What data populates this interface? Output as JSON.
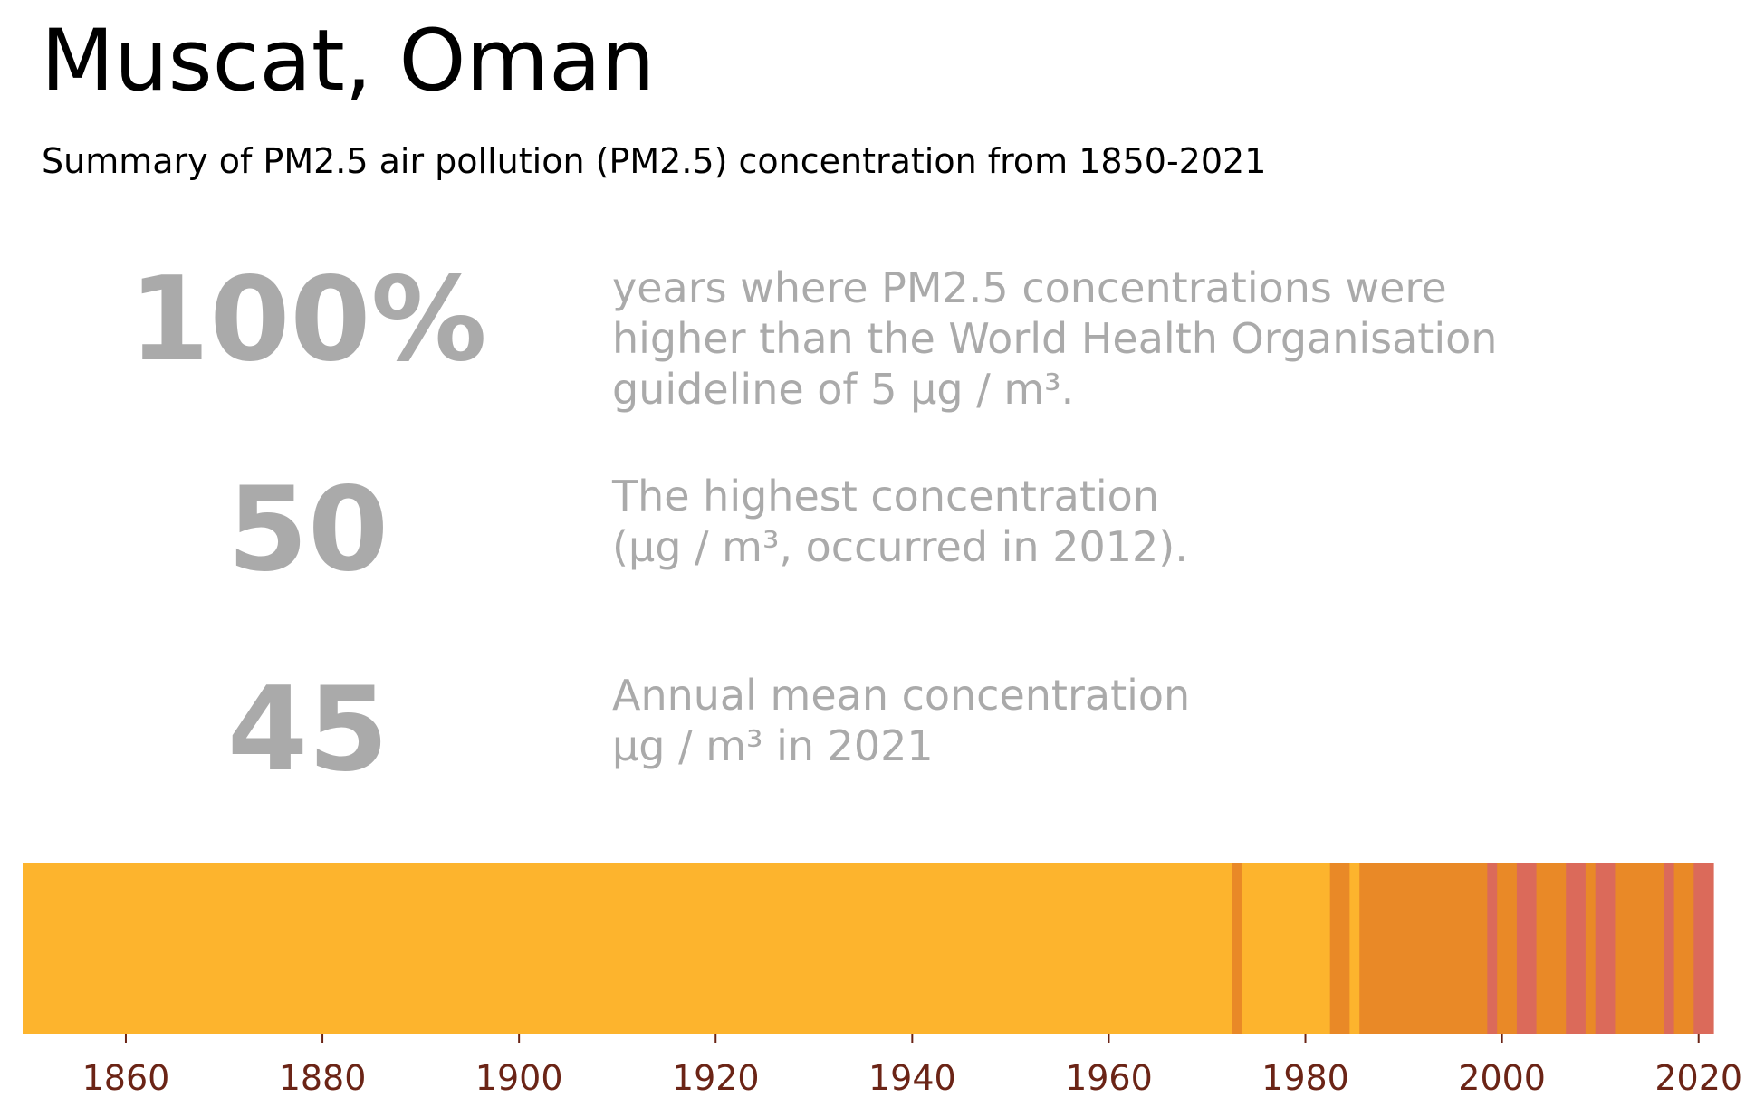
{
  "title": "Muscat, Oman",
  "subtitle": "Summary of PM2.5 air pollution (PM2.5) concentration from 1850-2021",
  "stats": [
    {
      "value": "100%",
      "lines": [
        "years where PM2.5 concentrations were",
        "higher than the World Health Organisation",
        "guideline of 5 µg / m³."
      ]
    },
    {
      "value": "50",
      "lines": [
        "The highest concentration",
        "(µg / m³, occurred in 2012)."
      ]
    },
    {
      "value": "45",
      "lines": [
        "Annual mean concentration",
        "µg / m³ in 2021"
      ]
    }
  ],
  "chart_data": {
    "type": "heatmap",
    "x_range": [
      1850,
      2022
    ],
    "x_ticks": [
      1860,
      1880,
      1900,
      1920,
      1940,
      1960,
      1980,
      2000,
      2020
    ],
    "colors": {
      "low": "#FDB42D",
      "mid": "#E98927",
      "high": "#DB6A5A",
      "tick_text": "#6B2416"
    },
    "segments": [
      {
        "start": 1850,
        "end": 1973,
        "level": "low"
      },
      {
        "start": 1973,
        "end": 1974,
        "level": "mid"
      },
      {
        "start": 1974,
        "end": 1983,
        "level": "low"
      },
      {
        "start": 1983,
        "end": 1985,
        "level": "mid"
      },
      {
        "start": 1985,
        "end": 1986,
        "level": "low"
      },
      {
        "start": 1986,
        "end": 1999,
        "level": "mid"
      },
      {
        "start": 1999,
        "end": 2000,
        "level": "high"
      },
      {
        "start": 2000,
        "end": 2002,
        "level": "mid"
      },
      {
        "start": 2002,
        "end": 2004,
        "level": "high"
      },
      {
        "start": 2004,
        "end": 2007,
        "level": "mid"
      },
      {
        "start": 2007,
        "end": 2009,
        "level": "high"
      },
      {
        "start": 2009,
        "end": 2010,
        "level": "mid"
      },
      {
        "start": 2010,
        "end": 2012,
        "level": "high"
      },
      {
        "start": 2012,
        "end": 2017,
        "level": "mid"
      },
      {
        "start": 2017,
        "end": 2018,
        "level": "high"
      },
      {
        "start": 2018,
        "end": 2020,
        "level": "mid"
      },
      {
        "start": 2020,
        "end": 2022,
        "level": "high"
      }
    ]
  }
}
